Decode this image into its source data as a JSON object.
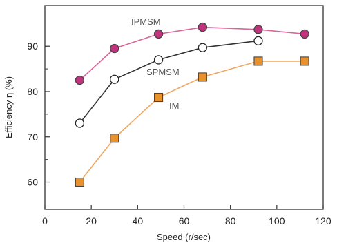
{
  "chart_data": {
    "type": "line",
    "title": "",
    "xlabel": "Speed (r/sec)",
    "ylabel": "Efficiency η (%)",
    "xlim": [
      0,
      120
    ],
    "ylim": [
      54,
      99
    ],
    "xticks": [
      0,
      20,
      40,
      60,
      80,
      100,
      120
    ],
    "yticks": [
      60,
      70,
      80,
      90
    ],
    "grid": false,
    "legend": "inline labels",
    "series": [
      {
        "name": "IPMSM",
        "marker": "filled-circle",
        "line_color": "#d9669a",
        "marker_fill": "#c2337e",
        "x": [
          15,
          30,
          49,
          68,
          92,
          112
        ],
        "y": [
          82.5,
          89.5,
          92.7,
          94.2,
          93.7,
          92.7
        ]
      },
      {
        "name": "SPMSM",
        "marker": "open-circle",
        "line_color": "#333333",
        "marker_fill": "#ffffff",
        "x": [
          15,
          30,
          49,
          68,
          92
        ],
        "y": [
          73,
          82.7,
          87,
          89.7,
          91.2
        ]
      },
      {
        "name": "IM",
        "marker": "filled-square",
        "line_color": "#f0a761",
        "marker_fill": "#e8922e",
        "x": [
          15,
          30,
          49,
          68,
          92,
          112
        ],
        "y": [
          60,
          69.7,
          78.7,
          83.2,
          86.7,
          86.7
        ]
      }
    ]
  }
}
